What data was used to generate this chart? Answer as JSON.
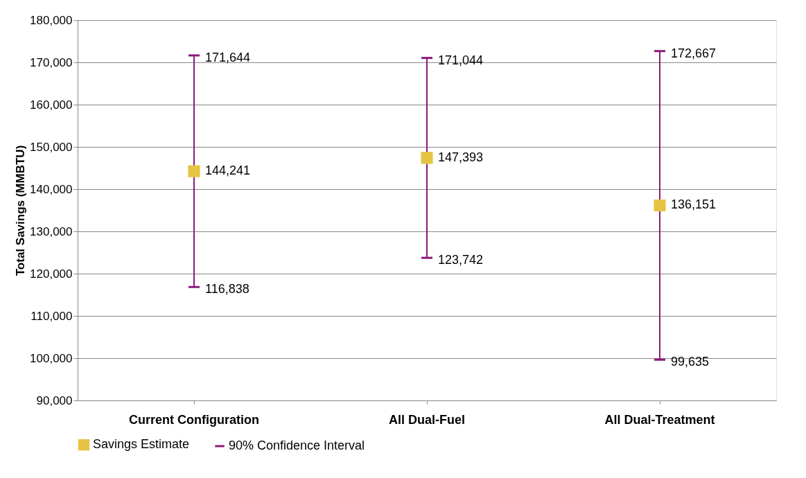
{
  "chart_data": {
    "type": "scatter",
    "ylabel": "Total Savings (MMBTU)",
    "categories": [
      "Current Configuration",
      "All Dual-Fuel",
      "All Dual-Treatment"
    ],
    "series": [
      {
        "name": "Savings Estimate",
        "color": "#e6c443",
        "values": [
          144241,
          147393,
          136151
        ],
        "value_labels": [
          "144,241",
          "147,393",
          "136,151"
        ],
        "errors": [
          [
            116838,
            171644
          ],
          [
            123742,
            171044
          ],
          [
            99635,
            172667
          ]
        ]
      },
      {
        "name": "90% Confidence Interval",
        "type": "other",
        "color": "#8b1a7a",
        "values": [
          null,
          null,
          null
        ]
      }
    ],
    "marker": "square",
    "annotations": [
      {
        "text": "171,644",
        "x": "Current Configuration",
        "y": 171644
      },
      {
        "text": "116,838",
        "x": "Current Configuration",
        "y": 116838
      },
      {
        "text": "171,044",
        "x": "All Dual-Fuel",
        "y": 171044
      },
      {
        "text": "123,742",
        "x": "All Dual-Fuel",
        "y": 123742
      },
      {
        "text": "172,667",
        "x": "All Dual-Treatment",
        "y": 172667
      },
      {
        "text": "99,635",
        "x": "All Dual-Treatment",
        "y": 99635
      }
    ],
    "ylim": [
      90000,
      180000
    ],
    "yticks": [
      {
        "value": 90000,
        "label": "90,000"
      },
      {
        "value": 100000,
        "label": "100,000"
      },
      {
        "value": 110000,
        "label": "110,000"
      },
      {
        "value": 120000,
        "label": "120,000"
      },
      {
        "value": 130000,
        "label": "130,000"
      },
      {
        "value": 140000,
        "label": "140,000"
      },
      {
        "value": 150000,
        "label": "150,000"
      },
      {
        "value": 160000,
        "label": "160,000"
      },
      {
        "value": 170000,
        "label": "170,000"
      },
      {
        "value": 180000,
        "label": "180,000"
      }
    ],
    "grid": "y",
    "legend": "bottom"
  }
}
